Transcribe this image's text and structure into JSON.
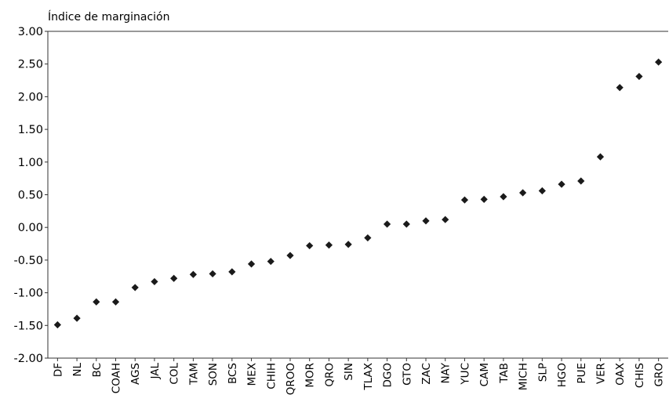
{
  "chart_data": {
    "type": "scatter",
    "title": "",
    "ylabel": "Índice de marginación",
    "xlabel": "",
    "ylim": [
      -2.0,
      3.0
    ],
    "yticks": [
      3.0,
      2.5,
      2.0,
      1.5,
      1.0,
      0.5,
      0.0,
      -0.5,
      -1.0,
      -1.5,
      -2.0
    ],
    "ytick_labels": [
      "3.00",
      "2.50",
      "2.00",
      "1.50",
      "1.00",
      "0.50",
      "0.00",
      "-0.50",
      "-1.00",
      "-1.50",
      "-2.00"
    ],
    "grid": false,
    "marker_color": "#1a1a1a",
    "categories": [
      "DF",
      "NL",
      "BC",
      "COAH",
      "AGS",
      "JAL",
      "COL",
      "TAM",
      "SON",
      "BCS",
      "MEX",
      "CHIH",
      "QROO",
      "MOR",
      "QRO",
      "SIN",
      "TLAX",
      "DGO",
      "GTO",
      "ZAC",
      "NAY",
      "YUC",
      "CAM",
      "TAB",
      "MICH",
      "SLP",
      "HGO",
      "PUE",
      "VER",
      "OAX",
      "CHIS",
      "GRO"
    ],
    "values": [
      -1.49,
      -1.39,
      -1.14,
      -1.14,
      -0.92,
      -0.83,
      -0.78,
      -0.72,
      -0.71,
      -0.68,
      -0.56,
      -0.52,
      -0.43,
      -0.28,
      -0.27,
      -0.26,
      -0.16,
      0.05,
      0.05,
      0.1,
      0.12,
      0.42,
      0.43,
      0.47,
      0.53,
      0.56,
      0.66,
      0.71,
      1.08,
      2.14,
      2.31,
      2.53
    ]
  }
}
